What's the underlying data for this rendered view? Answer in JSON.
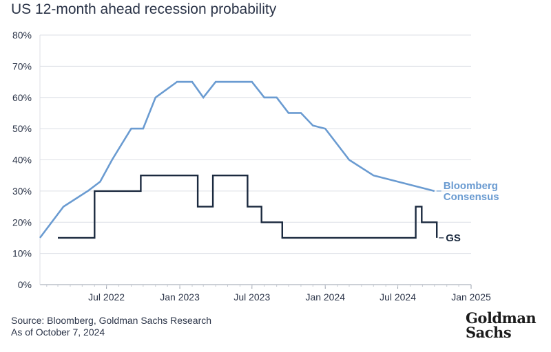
{
  "chart_data": {
    "type": "line",
    "title": "US 12-month ahead recession probability",
    "yticks": [
      "0%",
      "10%",
      "20%",
      "30%",
      "40%",
      "50%",
      "60%",
      "70%",
      "80%"
    ],
    "ylim": [
      0,
      80
    ],
    "xlim": [
      "2022-01-15",
      "2025-01-01"
    ],
    "xticks": [
      {
        "date": "2022-07-01",
        "label": "Jul 2022"
      },
      {
        "date": "2023-01-01",
        "label": "Jan 2023"
      },
      {
        "date": "2023-07-01",
        "label": "Jul 2023"
      },
      {
        "date": "2024-01-01",
        "label": "Jan 2024"
      },
      {
        "date": "2024-07-01",
        "label": "Jul 2024"
      },
      {
        "date": "2025-01-01",
        "label": "Jan 2025"
      }
    ],
    "series": [
      {
        "name": "Bloomberg Consensus",
        "label_lines": [
          "Bloomberg",
          "Consensus"
        ],
        "color": "#6a9bd1",
        "points": [
          [
            "2022-01-15",
            15
          ],
          [
            "2022-03-15",
            25
          ],
          [
            "2022-05-15",
            30
          ],
          [
            "2022-06-15",
            33
          ],
          [
            "2022-07-15",
            40
          ],
          [
            "2022-09-01",
            50
          ],
          [
            "2022-10-01",
            50
          ],
          [
            "2022-11-01",
            60
          ],
          [
            "2022-12-25",
            65
          ],
          [
            "2023-02-01",
            65
          ],
          [
            "2023-03-01",
            60
          ],
          [
            "2023-04-01",
            65
          ],
          [
            "2023-07-01",
            65
          ],
          [
            "2023-08-01",
            60
          ],
          [
            "2023-09-01",
            60
          ],
          [
            "2023-10-01",
            55
          ],
          [
            "2023-11-01",
            55
          ],
          [
            "2023-12-01",
            51
          ],
          [
            "2024-01-01",
            50
          ],
          [
            "2024-03-01",
            40
          ],
          [
            "2024-05-01",
            35
          ],
          [
            "2024-10-01",
            30
          ]
        ]
      },
      {
        "name": "GS",
        "label_lines": [
          "GS"
        ],
        "color": "#1b2a3f",
        "step": true,
        "points": [
          [
            "2022-03-01",
            15
          ],
          [
            "2022-06-01",
            15
          ],
          [
            "2022-06-01",
            30
          ],
          [
            "2022-09-25",
            30
          ],
          [
            "2022-09-25",
            35
          ],
          [
            "2023-02-15",
            35
          ],
          [
            "2023-02-15",
            25
          ],
          [
            "2023-03-25",
            25
          ],
          [
            "2023-03-25",
            35
          ],
          [
            "2023-06-20",
            35
          ],
          [
            "2023-06-20",
            25
          ],
          [
            "2023-07-25",
            25
          ],
          [
            "2023-07-25",
            20
          ],
          [
            "2023-09-15",
            20
          ],
          [
            "2023-09-15",
            15
          ],
          [
            "2024-08-15",
            15
          ],
          [
            "2024-08-15",
            25
          ],
          [
            "2024-08-30",
            25
          ],
          [
            "2024-08-30",
            20
          ],
          [
            "2024-10-07",
            20
          ],
          [
            "2024-10-07",
            15
          ]
        ]
      }
    ]
  },
  "footer": {
    "source": "Source: Bloomberg, Goldman Sachs Research",
    "asof": "As of October 7, 2024"
  },
  "logo": {
    "line1": "Goldman",
    "line2": "Sachs"
  }
}
